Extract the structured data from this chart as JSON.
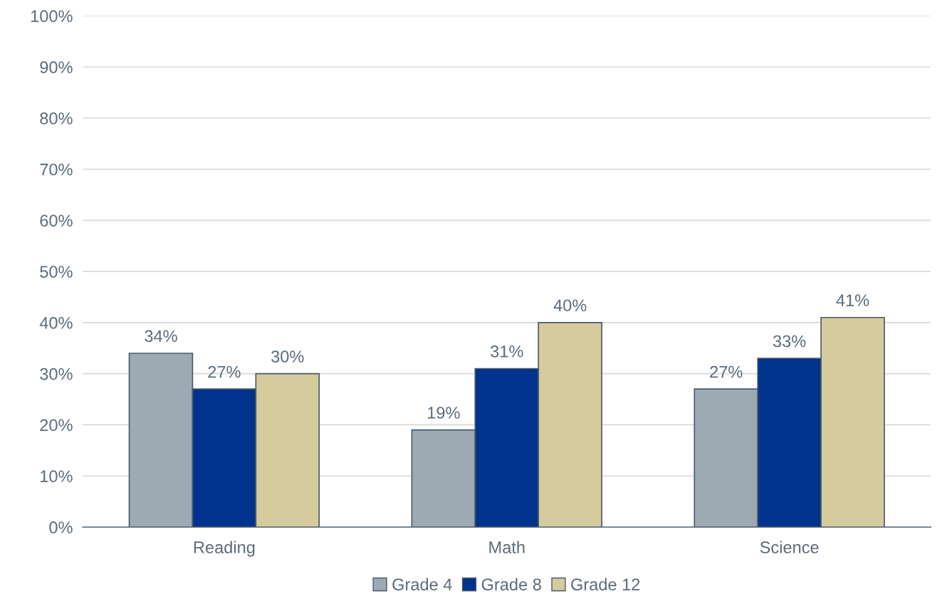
{
  "chart_data": {
    "type": "bar",
    "categories": [
      "Reading",
      "Math",
      "Science"
    ],
    "series": [
      {
        "name": "Grade 4",
        "color": "#9eaab3",
        "values": [
          34,
          19,
          27
        ],
        "value_labels": [
          "34%",
          "19%",
          "27%"
        ]
      },
      {
        "name": "Grade 8",
        "color": "#00338d",
        "values": [
          27,
          31,
          33
        ],
        "value_labels": [
          "27%",
          "31%",
          "33%"
        ]
      },
      {
        "name": "Grade 12",
        "color": "#d6cb9c",
        "values": [
          30,
          40,
          41
        ],
        "value_labels": [
          "30%",
          "40%",
          "41%"
        ]
      }
    ],
    "ylim": [
      0,
      100
    ],
    "yticks": [
      {
        "value": 0,
        "label": "0%"
      },
      {
        "value": 10,
        "label": "10%"
      },
      {
        "value": 20,
        "label": "20%"
      },
      {
        "value": 30,
        "label": "30%"
      },
      {
        "value": 40,
        "label": "40%"
      },
      {
        "value": 50,
        "label": "50%"
      },
      {
        "value": 60,
        "label": "60%"
      },
      {
        "value": 70,
        "label": "70%"
      },
      {
        "value": 80,
        "label": "80%"
      },
      {
        "value": 90,
        "label": "90%"
      },
      {
        "value": 100,
        "label": "100%"
      }
    ],
    "grid": "y",
    "legend": "bottom"
  }
}
